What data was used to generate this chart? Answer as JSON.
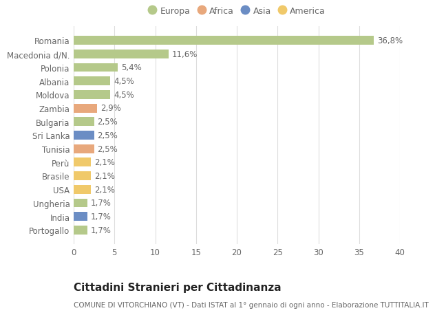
{
  "countries": [
    "Romania",
    "Macedonia d/N.",
    "Polonia",
    "Albania",
    "Moldova",
    "Zambia",
    "Bulgaria",
    "Sri Lanka",
    "Tunisia",
    "Perù",
    "Brasile",
    "USA",
    "Ungheria",
    "India",
    "Portogallo"
  ],
  "values": [
    36.8,
    11.6,
    5.4,
    4.5,
    4.5,
    2.9,
    2.5,
    2.5,
    2.5,
    2.1,
    2.1,
    2.1,
    1.7,
    1.7,
    1.7
  ],
  "labels": [
    "36,8%",
    "11,6%",
    "5,4%",
    "4,5%",
    "4,5%",
    "2,9%",
    "2,5%",
    "2,5%",
    "2,5%",
    "2,1%",
    "2,1%",
    "2,1%",
    "1,7%",
    "1,7%",
    "1,7%"
  ],
  "continents": [
    "Europa",
    "Europa",
    "Europa",
    "Europa",
    "Europa",
    "Africa",
    "Europa",
    "Asia",
    "Africa",
    "America",
    "America",
    "America",
    "Europa",
    "Asia",
    "Europa"
  ],
  "continent_colors": {
    "Europa": "#b5c98a",
    "Africa": "#e8a87c",
    "Asia": "#6b8dc4",
    "America": "#f0c96a"
  },
  "legend_entries": [
    "Europa",
    "Africa",
    "Asia",
    "America"
  ],
  "legend_colors": [
    "#b5c98a",
    "#e8a87c",
    "#6b8dc4",
    "#f0c96a"
  ],
  "xlim": [
    0,
    40
  ],
  "xticks": [
    0,
    5,
    10,
    15,
    20,
    25,
    30,
    35,
    40
  ],
  "title": "Cittadini Stranieri per Cittadinanza",
  "subtitle": "COMUNE DI VITORCHIANO (VT) - Dati ISTAT al 1° gennaio di ogni anno - Elaborazione TUTTITALIA.IT",
  "background_color": "#ffffff",
  "grid_color": "#dddddd",
  "bar_height": 0.65,
  "label_fontsize": 8.5,
  "tick_fontsize": 8.5,
  "title_fontsize": 11,
  "subtitle_fontsize": 7.5,
  "legend_fontsize": 9
}
